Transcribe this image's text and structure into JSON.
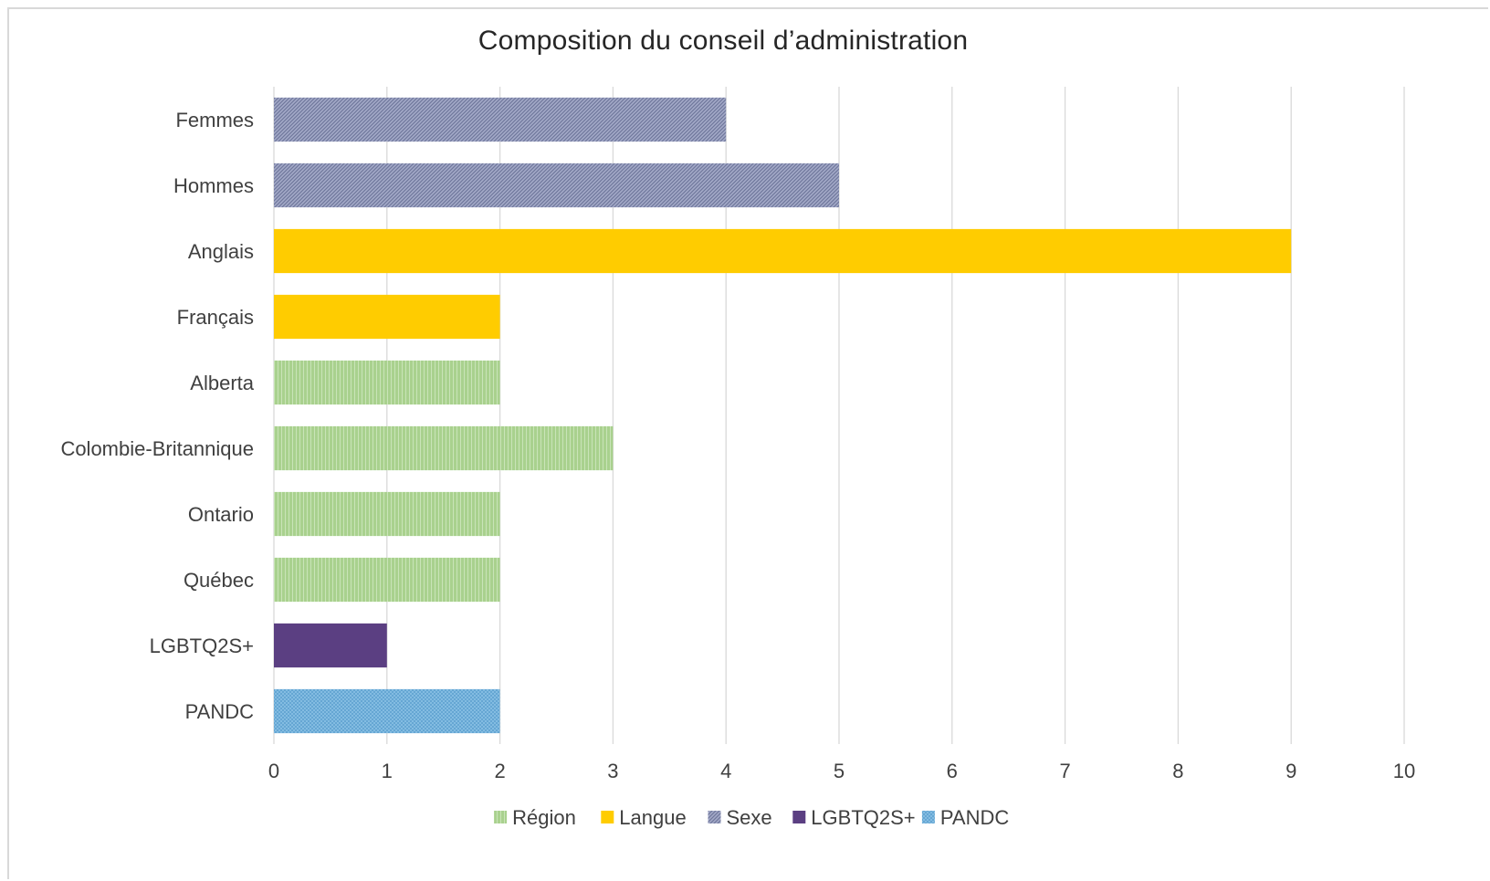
{
  "chart_data": {
    "type": "bar",
    "orientation": "horizontal",
    "title": "Composition du conseil d’administration",
    "categories": [
      "Femmes",
      "Hommes",
      "Anglais",
      "Français",
      "Alberta",
      "Colombie-Britannique",
      "Ontario",
      "Québec ",
      "LGBTQ2S+",
      "PANDC"
    ],
    "values": [
      4,
      5,
      9,
      2,
      2,
      3,
      2,
      2,
      1,
      2
    ],
    "bar_groups": [
      "Sexe",
      "Sexe",
      "Langue",
      "Langue",
      "Région",
      "Région",
      "Région",
      "Région",
      "LGBTQ2S+",
      "PANDC"
    ],
    "series": [
      {
        "name": "Région",
        "color": "#a9d18e",
        "pattern": "vertical-stripes"
      },
      {
        "name": "Langue",
        "color": "#ffcc00",
        "pattern": "solid"
      },
      {
        "name": "Sexe",
        "color": "#8e96b8",
        "pattern": "diagonal-hatch"
      },
      {
        "name": "LGBTQ2S+",
        "color": "#5b3f82",
        "pattern": "solid"
      },
      {
        "name": "PANDC",
        "color": "#7ab8e0",
        "pattern": "crosshatch"
      }
    ],
    "xlim": [
      0,
      10
    ],
    "x_ticks": [
      "0",
      "1",
      "2",
      "3",
      "4",
      "5",
      "6",
      "7",
      "8",
      "9",
      "10"
    ],
    "grid": "vertical",
    "legend_position": "bottom"
  }
}
